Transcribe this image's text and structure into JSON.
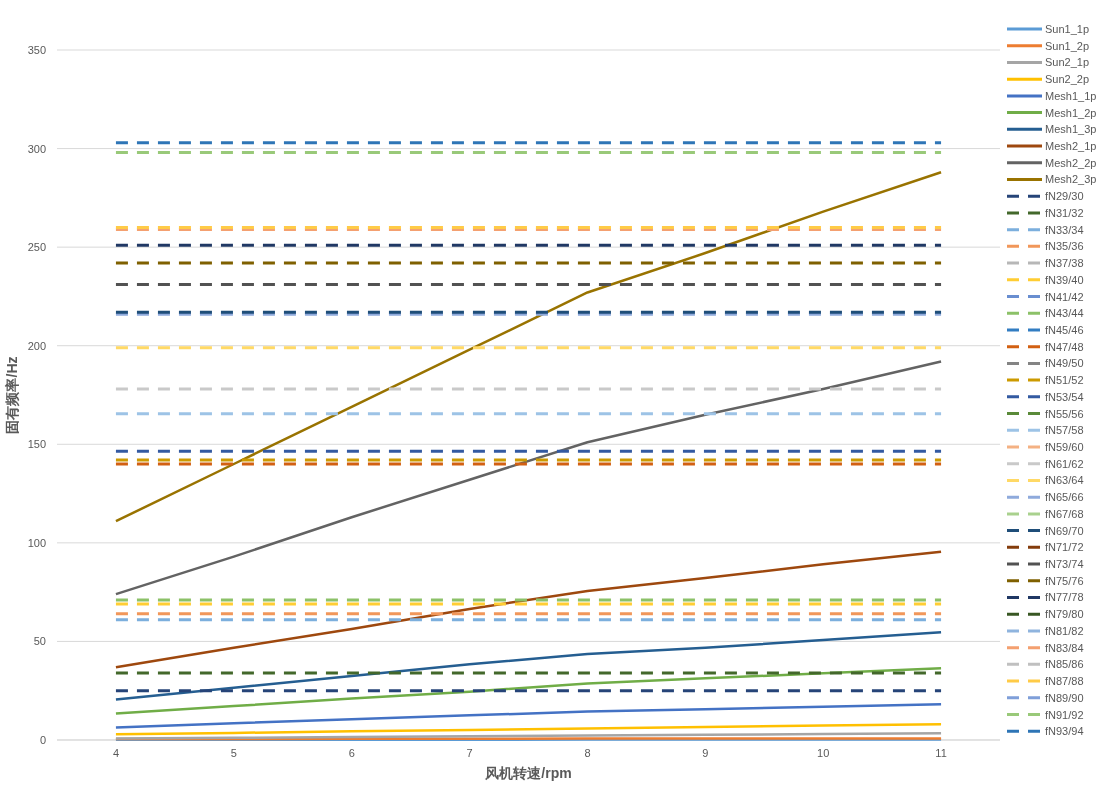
{
  "chart_data": {
    "type": "line",
    "xlabel": "风机转速/rpm",
    "ylabel": "固有频率/Hz",
    "categories": [
      "4",
      "5",
      "6",
      "7",
      "8",
      "9",
      "10",
      "11"
    ],
    "ylim": [
      0,
      350
    ],
    "yticks": [
      0,
      50,
      100,
      150,
      200,
      250,
      300,
      350
    ],
    "grid": "y",
    "legend": "right",
    "line_style": "solid",
    "series": [
      {
        "name": "Sun1_1p",
        "color": "#5b9bd5",
        "values": [
          0.1,
          0.1,
          0.1,
          0.1,
          0.2,
          0.2,
          0.2,
          0.2
        ]
      },
      {
        "name": "Sun1_2p",
        "color": "#ed7d31",
        "values": [
          0.5,
          0.5,
          0.6,
          0.6,
          0.7,
          0.7,
          0.8,
          0.8
        ]
      },
      {
        "name": "Sun2_1p",
        "color": "#a5a5a5",
        "values": [
          0.7,
          1.1,
          1.5,
          1.9,
          2.3,
          2.6,
          3.0,
          3.4
        ]
      },
      {
        "name": "Sun2_2p",
        "color": "#ffc000",
        "values": [
          2.9,
          3.6,
          4.4,
          5.1,
          5.8,
          6.6,
          7.3,
          8.0
        ]
      },
      {
        "name": "Mesh1_1p",
        "color": "#4472c4",
        "values": [
          6.4,
          8.5,
          10.5,
          12.5,
          14.4,
          15.6,
          16.9,
          18.1
        ]
      },
      {
        "name": "Mesh1_2p",
        "color": "#70ad47",
        "values": [
          13.5,
          17.2,
          21.1,
          24.5,
          28.7,
          31.3,
          33.8,
          36.4
        ]
      },
      {
        "name": "Mesh1_3p",
        "color": "#255e91",
        "values": [
          20.6,
          26.5,
          32.5,
          38.4,
          43.6,
          46.8,
          50.7,
          54.6
        ]
      },
      {
        "name": "Mesh2_1p",
        "color": "#9e480e",
        "values": [
          36.9,
          46.8,
          56.3,
          66.5,
          75.6,
          82.2,
          89.1,
          95.5
        ]
      },
      {
        "name": "Mesh2_2p",
        "color": "#636363",
        "values": [
          74,
          93,
          113,
          132,
          151,
          165,
          178,
          192
        ]
      },
      {
        "name": "Mesh2_3p",
        "color": "#997300",
        "values": [
          111,
          140,
          169,
          198,
          227,
          247,
          268,
          288
        ]
      },
      {
        "name": "fN29/30",
        "color": "#264478",
        "line_style": "dashed",
        "values": [
          25,
          25,
          25,
          25,
          25,
          25,
          25,
          25
        ]
      },
      {
        "name": "fN31/32",
        "color": "#43682b",
        "line_style": "dashed",
        "values": [
          34,
          34,
          34,
          34,
          34,
          34,
          34,
          34
        ]
      },
      {
        "name": "fN33/34",
        "color": "#7cafdd",
        "line_style": "dashed",
        "values": [
          61,
          61,
          61,
          61,
          61,
          61,
          61,
          61
        ]
      },
      {
        "name": "fN35/36",
        "color": "#f1975a",
        "line_style": "dashed",
        "values": [
          64,
          64,
          64,
          64,
          64,
          64,
          64,
          64
        ]
      },
      {
        "name": "fN37/38",
        "color": "#b7b7b7",
        "line_style": "dashed",
        "values": [
          null,
          null,
          null,
          null,
          null,
          null,
          null,
          null
        ]
      },
      {
        "name": "fN39/40",
        "color": "#ffcd33",
        "line_style": "dashed",
        "values": [
          69,
          69,
          69,
          69,
          69,
          69,
          69,
          69
        ]
      },
      {
        "name": "fN41/42",
        "color": "#698ed0",
        "line_style": "dashed",
        "values": [
          null,
          null,
          null,
          null,
          null,
          null,
          null,
          null
        ]
      },
      {
        "name": "fN43/44",
        "color": "#8cc168",
        "line_style": "dashed",
        "values": [
          71,
          71,
          71,
          71,
          71,
          71,
          71,
          71
        ]
      },
      {
        "name": "fN45/46",
        "color": "#327dc2",
        "line_style": "dashed",
        "values": [
          null,
          null,
          null,
          null,
          null,
          null,
          null,
          null
        ]
      },
      {
        "name": "fN47/48",
        "color": "#d26012",
        "line_style": "dashed",
        "values": [
          140,
          140,
          140,
          140,
          140,
          140,
          140,
          140
        ]
      },
      {
        "name": "fN49/50",
        "color": "#848484",
        "line_style": "dashed",
        "values": [
          null,
          null,
          null,
          null,
          null,
          null,
          null,
          null
        ]
      },
      {
        "name": "fN51/52",
        "color": "#cc9a00",
        "line_style": "dashed",
        "values": [
          142,
          142,
          142,
          142,
          142,
          142,
          142,
          142
        ]
      },
      {
        "name": "fN53/54",
        "color": "#335aa1",
        "line_style": "dashed",
        "values": [
          146.5,
          146.5,
          146.5,
          146.5,
          146.5,
          146.5,
          146.5,
          146.5
        ]
      },
      {
        "name": "fN55/56",
        "color": "#5a8a39",
        "line_style": "dashed",
        "values": [
          null,
          null,
          null,
          null,
          null,
          null,
          null,
          null
        ]
      },
      {
        "name": "fN57/58",
        "color": "#9dc3e6",
        "line_style": "dashed",
        "values": [
          165.5,
          165.5,
          165.5,
          165.5,
          165.5,
          165.5,
          165.5,
          165.5
        ]
      },
      {
        "name": "fN59/60",
        "color": "#f4b183",
        "line_style": "dashed",
        "values": [
          null,
          null,
          null,
          null,
          null,
          null,
          null,
          null
        ]
      },
      {
        "name": "fN61/62",
        "color": "#c9c9c9",
        "line_style": "dashed",
        "values": [
          178,
          178,
          178,
          178,
          178,
          178,
          178,
          178
        ]
      },
      {
        "name": "fN63/64",
        "color": "#ffd966",
        "line_style": "dashed",
        "values": [
          199,
          199,
          199,
          199,
          199,
          199,
          199,
          199
        ]
      },
      {
        "name": "fN65/66",
        "color": "#8faadc",
        "line_style": "dashed",
        "values": [
          216,
          216,
          216,
          216,
          216,
          216,
          216,
          216
        ]
      },
      {
        "name": "fN67/68",
        "color": "#a9d18e",
        "line_style": "dashed",
        "values": [
          null,
          null,
          null,
          null,
          null,
          null,
          null,
          null
        ]
      },
      {
        "name": "fN69/70",
        "color": "#1f4e79",
        "line_style": "dashed",
        "values": [
          217,
          217,
          217,
          217,
          217,
          217,
          217,
          217
        ]
      },
      {
        "name": "fN71/72",
        "color": "#843c0c",
        "line_style": "dashed",
        "values": [
          null,
          null,
          null,
          null,
          null,
          null,
          null,
          null
        ]
      },
      {
        "name": "fN73/74",
        "color": "#525252",
        "line_style": "dashed",
        "values": [
          231,
          231,
          231,
          231,
          231,
          231,
          231,
          231
        ]
      },
      {
        "name": "fN75/76",
        "color": "#7f6000",
        "line_style": "dashed",
        "values": [
          242,
          242,
          242,
          242,
          242,
          242,
          242,
          242
        ]
      },
      {
        "name": "fN77/78",
        "color": "#203864",
        "line_style": "dashed",
        "values": [
          251,
          251,
          251,
          251,
          251,
          251,
          251,
          251
        ]
      },
      {
        "name": "fN79/80",
        "color": "#385723",
        "line_style": "dashed",
        "values": [
          null,
          null,
          null,
          null,
          null,
          null,
          null,
          null
        ]
      },
      {
        "name": "fN81/82",
        "color": "#8fb4de",
        "line_style": "dashed",
        "values": [
          null,
          null,
          null,
          null,
          null,
          null,
          null,
          null
        ]
      },
      {
        "name": "fN83/84",
        "color": "#f4a070",
        "line_style": "dashed",
        "values": [
          259,
          259,
          259,
          259,
          259,
          259,
          259,
          259
        ]
      },
      {
        "name": "fN85/86",
        "color": "#c0c0c0",
        "line_style": "dashed",
        "values": [
          null,
          null,
          null,
          null,
          null,
          null,
          null,
          null
        ]
      },
      {
        "name": "fN87/88",
        "color": "#ffcb47",
        "line_style": "dashed",
        "values": [
          260,
          260,
          260,
          260,
          260,
          260,
          260,
          260
        ]
      },
      {
        "name": "fN89/90",
        "color": "#7f9fd9",
        "line_style": "dashed",
        "values": [
          null,
          null,
          null,
          null,
          null,
          null,
          null,
          null
        ]
      },
      {
        "name": "fN91/92",
        "color": "#99c979",
        "line_style": "dashed",
        "values": [
          298,
          298,
          298,
          298,
          298,
          298,
          298,
          298
        ]
      },
      {
        "name": "fN93/94",
        "color": "#2e75b6",
        "line_style": "dashed",
        "values": [
          303,
          303,
          303,
          303,
          303,
          303,
          303,
          303
        ]
      }
    ]
  }
}
